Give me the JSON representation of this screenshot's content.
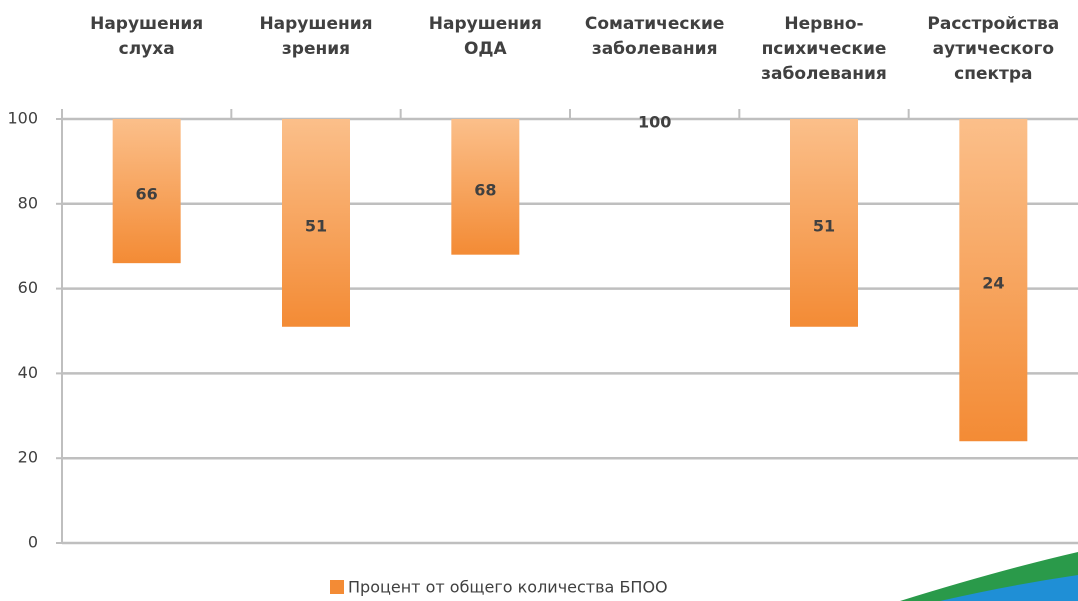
{
  "chart_data": {
    "type": "bar",
    "categories": [
      "Нарушения\nслуха",
      "Нарушения\nзрения",
      "Нарушения\nОДА",
      "Соматические\nзаболевания",
      "Нервно-\nпсихические\nзаболевания",
      "Расстройства\nаутического\nспектра"
    ],
    "series": [
      {
        "name": "Процент от общего количества БПОО",
        "color": "#f38b35",
        "values": [
          66,
          51,
          68,
          100,
          51,
          24
        ]
      }
    ],
    "ylim": [
      0,
      100
    ],
    "yticks": [
      0,
      20,
      40,
      60,
      80,
      100
    ],
    "grid": true,
    "legend": "bottom"
  }
}
